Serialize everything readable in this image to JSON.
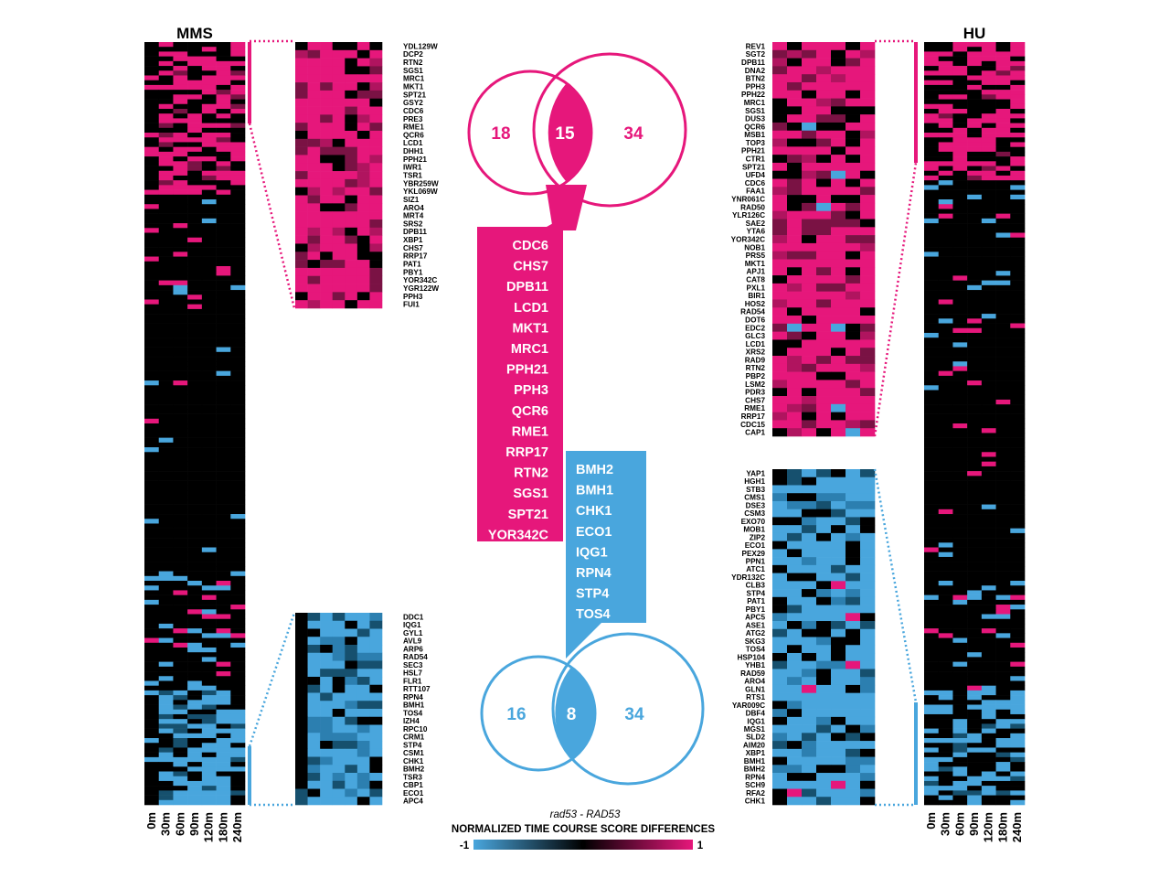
{
  "colors": {
    "pos": "#e6177b",
    "neg": "#49a6dd",
    "zero": "#000000",
    "white": "#ffffff"
  },
  "timepoints": [
    "0m",
    "30m",
    "60m",
    "90m",
    "120m",
    "180m",
    "240m"
  ],
  "mms": {
    "title": "MMS",
    "zoom_pos_genes": [
      "YDL129W",
      "DCP2",
      "RTN2",
      "SGS1",
      "MRC1",
      "MKT1",
      "SPT21",
      "GSY2",
      "CDC6",
      "PRE3",
      "RME1",
      "QCR6",
      "LCD1",
      "DHH1",
      "PPH21",
      "IWR1",
      "TSR1",
      "YBR259W",
      "YKL069W",
      "SIZ1",
      "ARO4",
      "MRT4",
      "SRS2",
      "DPB11",
      "XBP1",
      "CHS7",
      "RRP17",
      "PAT1",
      "PBY1",
      "YOR342C",
      "YGR122W",
      "PPH3",
      "FUI1"
    ],
    "zoom_neg_genes": [
      "DDC1",
      "IQG1",
      "GYL1",
      "AVL9",
      "ARP6",
      "RAD54",
      "SEC3",
      "HSL7",
      "FLR1",
      "RTT107",
      "RPN4",
      "BMH1",
      "TOS4",
      "IZH4",
      "RPC10",
      "CRM1",
      "STP4",
      "CSM1",
      "CHK1",
      "BMH2",
      "TSR3",
      "CBP1",
      "ECO1",
      "APC4"
    ]
  },
  "hu": {
    "title": "HU",
    "zoom_pos_genes": [
      "REV1",
      "SGT2",
      "DPB11",
      "DNA2",
      "BTN2",
      "PPH3",
      "PPH22",
      "MRC1",
      "SGS1",
      "DUS3",
      "QCR6",
      "MSB1",
      "TOP3",
      "PPH21",
      "CTR1",
      "SPT21",
      "UFD4",
      "CDC6",
      "FAA1",
      "YNR061C",
      "RAD50",
      "YLR126C",
      "SAE2",
      "YTA6",
      "YOR342C",
      "NOB1",
      "PRS5",
      "MKT1",
      "APJ1",
      "CAT8",
      "PXL1",
      "BIR1",
      "HOS2",
      "RAD54",
      "DOT6",
      "EDC2",
      "GLC3",
      "LCD1",
      "XRS2",
      "RAD9",
      "RTN2",
      "PBP2",
      "LSM2",
      "PDR3",
      "CHS7",
      "RME1",
      "RRP17",
      "CDC15",
      "CAP1"
    ],
    "zoom_neg_genes": [
      "YAP1",
      "HGH1",
      "STB3",
      "CMS1",
      "DSE3",
      "CSM3",
      "EXO70",
      "MOB1",
      "ZIP2",
      "ECO1",
      "PEX29",
      "PPN1",
      "ATC1",
      "YDR132C",
      "CLB3",
      "STP4",
      "PAT1",
      "PBY1",
      "APC5",
      "ASE1",
      "ATG2",
      "SKG3",
      "TOS4",
      "HSP104",
      "YHB1",
      "RAD59",
      "ARO4",
      "GLN1",
      "RTS1",
      "YAR009C",
      "DBF4",
      "IQG1",
      "MGS1",
      "SLD2",
      "AIM20",
      "XBP1",
      "BMH1",
      "BMH2",
      "RPN4",
      "SCH9",
      "RFA2",
      "CHK1"
    ]
  },
  "venn_pos": {
    "left": "18",
    "overlap": "15",
    "right": "34"
  },
  "venn_neg": {
    "left": "16",
    "overlap": "8",
    "right": "34"
  },
  "overlap_pos_genes": [
    "CDC6",
    "CHS7",
    "DPB11",
    "LCD1",
    "MKT1",
    "MRC1",
    "PPH21",
    "PPH3",
    "QCR6",
    "RME1",
    "RRP17",
    "RTN2",
    "SGS1",
    "SPT21",
    "YOR342C"
  ],
  "overlap_neg_genes": [
    "BMH2",
    "BMH1",
    "CHK1",
    "ECO1",
    "IQG1",
    "RPN4",
    "STP4",
    "TOS4"
  ],
  "legend": {
    "subtitle": "rad53 - RAD53",
    "title": "NORMALIZED TIME COURSE SCORE DIFFERENCES",
    "min": "-1",
    "mid": "0",
    "max": "1",
    "range": [
      -1,
      1
    ]
  }
}
